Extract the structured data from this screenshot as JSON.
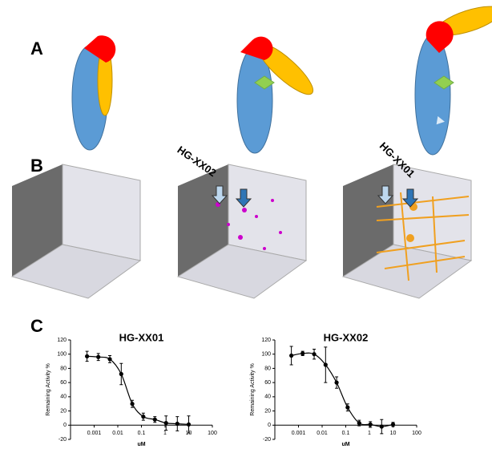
{
  "panel_labels": [
    "A",
    "B",
    "C"
  ],
  "compound_labels": [
    "HG-XX02",
    "HG-XX01"
  ],
  "chart_data": [
    {
      "type": "scatter",
      "title": "HG-XX01",
      "xlabel": "uM",
      "ylabel": "Remaining Activity %",
      "log_x": true,
      "xlim": [
        0.0001,
        100
      ],
      "xticks": [
        0.001,
        0.01,
        0.1,
        1,
        10,
        100
      ],
      "ylim": [
        -20,
        120
      ],
      "yticks": [
        -20,
        0,
        20,
        40,
        60,
        80,
        100,
        120
      ],
      "x": [
        0.0005,
        0.0015,
        0.0046,
        0.014,
        0.041,
        0.12,
        0.37,
        1.1,
        3.3,
        10
      ],
      "series": [
        {
          "color": "#000000",
          "values": [
            97,
            96,
            93,
            72,
            30,
            12,
            8,
            3,
            2,
            1
          ],
          "errors": [
            7,
            5,
            5,
            15,
            5,
            5,
            4,
            10,
            10,
            12
          ]
        }
      ]
    },
    {
      "type": "scatter",
      "title": "HG-XX02",
      "xlabel": "uM",
      "ylabel": "Remaining Activity %",
      "log_x": true,
      "xlim": [
        0.0001,
        100
      ],
      "xticks": [
        0.001,
        0.01,
        0.1,
        1,
        10,
        100
      ],
      "ylim": [
        -20,
        120
      ],
      "yticks": [
        -20,
        0,
        20,
        40,
        60,
        80,
        100,
        120
      ],
      "x": [
        0.0005,
        0.0015,
        0.0046,
        0.014,
        0.041,
        0.12,
        0.37,
        1.1,
        3.3,
        10
      ],
      "series": [
        {
          "color": "#000000",
          "values": [
            98,
            101,
            100,
            85,
            60,
            25,
            3,
            1,
            -2,
            1
          ],
          "errors": [
            13,
            3,
            7,
            25,
            8,
            5,
            4,
            4,
            10,
            3
          ]
        }
      ]
    }
  ]
}
